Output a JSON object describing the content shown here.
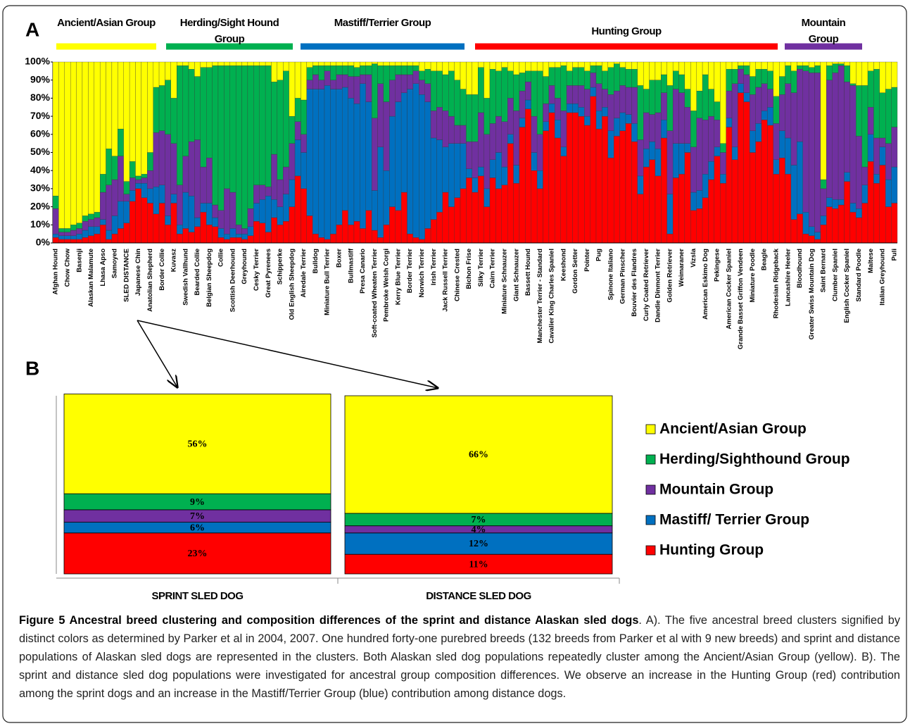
{
  "panel_labels": [
    "A",
    "B"
  ],
  "chart_data": [
    {
      "type": "stacked_bar",
      "groups": [
        {
          "label": "Ancient/Asian Group",
          "color": "#ffff00"
        },
        {
          "label": "Herding/Sight Hound Group",
          "color": "#00b050"
        },
        {
          "label": "Mastiff/Terrier Group",
          "color": "#0070c0"
        },
        {
          "label": "Hunting Group",
          "color": "#ff0000"
        },
        {
          "label": "Mountain Group",
          "color": "#7030a0"
        }
      ],
      "ylim": [
        0,
        100
      ],
      "yticks": [
        {
          "value": 0,
          "label": "0%"
        },
        {
          "value": 10,
          "label": "10%"
        },
        {
          "value": 20,
          "label": "20%"
        },
        {
          "value": 30,
          "label": "30%"
        },
        {
          "value": 40,
          "label": "40%"
        },
        {
          "value": 50,
          "label": "50%"
        },
        {
          "value": 60,
          "label": "60%"
        },
        {
          "value": 70,
          "label": "70%"
        },
        {
          "value": 80,
          "label": "80%"
        },
        {
          "value": 90,
          "label": "90%"
        },
        {
          "value": 100,
          "label": "100%"
        }
      ],
      "categories": [
        "Afghan Hound",
        null,
        "Chow Chow",
        null,
        "Basenji",
        null,
        "Alaskan Malamute",
        null,
        "Lhasa Apso",
        null,
        "Samoyed",
        null,
        "SLED DISTANCE",
        null,
        "Japanese Chin",
        null,
        "Anatolian Shepherd",
        null,
        "Border Collie",
        null,
        "Kuvasz",
        null,
        "Swedish Vallhund",
        null,
        "Bearded Collie",
        null,
        "Belgian Sheepdog",
        null,
        "Collie",
        null,
        "Scottish Deerhound",
        null,
        "Greyhound",
        null,
        "Cesky Terrier",
        null,
        "Great Pyrenees",
        null,
        "Schipperke",
        null,
        "Old English Sheepdog",
        null,
        "Airedale Terrier",
        null,
        "Bulldog",
        null,
        "Miniature Bull Terrier",
        null,
        "Boxer",
        null,
        "Bullmastiff",
        null,
        "Presa Canario",
        null,
        "Soft-coated Wheaten Terrier",
        null,
        "Pembroke Welsh Corgi",
        null,
        "Kerry Blue Terrier",
        null,
        "Border Terrier",
        null,
        "Norwich Terrier",
        null,
        "Irish Terrier",
        null,
        "Jack Russell Terrier",
        null,
        "Chinese Crested",
        null,
        "Bichon Frise",
        null,
        "Silky Terrier",
        null,
        "Cairn Terrier",
        null,
        "Miniature Schnauzer",
        null,
        "Giant Schnauzer",
        null,
        "Bassett Hound",
        null,
        "Manchester Terrier - Standard",
        null,
        "Cavalier King Charles Spaniel",
        null,
        "Keeshond",
        null,
        "Gordon Setter",
        null,
        "Pointer",
        null,
        "Pug",
        null,
        "Spinone Italiano",
        null,
        "German Pinscher",
        null,
        "Bouvier des Flandres",
        null,
        "Curly Coated Retriever",
        null,
        "Dandie Dinmont Terrier",
        null,
        "Golden Retriever",
        null,
        "Weimaraner",
        null,
        "Vizsla",
        null,
        "American Eskimo Dog",
        null,
        "Pekingese",
        null,
        "American Cocker Spaniel",
        null,
        "Grande Basset Griffon Vendeen",
        null,
        "Miniature Poodle",
        null,
        "Beagle",
        null,
        "Rhodesian Ridgeback",
        null,
        "Lancashire Heeler",
        null,
        "Bloodhound",
        null,
        "Greater Swiss Mountain Dog",
        null,
        "Saint Bernard",
        null,
        "Clumber Spaniel",
        null,
        "English Cocker Spaniel",
        null,
        "Standard Poodle",
        null,
        "Maltese",
        null,
        "Italian Greyhound",
        null,
        "Puli"
      ],
      "series": [
        {
          "color": "#ffff00",
          "values": [
            74,
            92,
            92,
            90,
            89,
            85,
            84,
            83,
            62,
            48,
            52,
            37,
            66,
            55,
            63,
            62,
            50,
            14,
            13,
            10,
            20,
            2,
            2,
            4,
            8,
            3,
            3,
            2,
            2,
            2,
            2,
            2,
            2,
            2,
            2,
            2,
            2,
            11,
            10,
            5,
            30,
            20,
            21,
            3,
            2,
            2,
            2,
            2,
            2,
            2,
            2,
            3,
            2,
            2,
            1,
            2,
            2,
            2,
            2,
            2,
            2,
            2,
            5,
            4,
            5,
            5,
            7,
            5,
            10,
            15,
            18,
            18,
            3,
            20,
            4,
            5,
            3,
            5,
            7,
            6,
            5,
            5,
            5,
            8,
            3,
            3,
            2,
            5,
            3,
            3,
            5,
            2,
            2,
            5,
            3,
            1,
            3,
            4,
            4,
            13,
            15,
            10,
            10,
            7,
            13,
            5,
            7,
            15,
            27,
            16,
            7,
            15,
            22,
            45,
            4,
            4,
            2,
            2,
            8,
            4,
            4,
            5,
            19,
            8,
            2,
            5,
            2,
            2,
            3,
            2,
            65,
            2,
            1,
            1,
            2,
            12,
            13,
            13,
            5,
            4,
            17,
            15,
            14
          ]
        },
        {
          "color": "#00b050",
          "values": [
            7,
            2,
            2,
            3,
            3,
            3,
            3,
            3,
            10,
            20,
            13,
            15,
            7,
            9,
            2,
            2,
            10,
            25,
            25,
            30,
            25,
            66,
            50,
            40,
            35,
            55,
            50,
            77,
            80,
            68,
            70,
            88,
            90,
            79,
            66,
            66,
            67,
            40,
            55,
            53,
            15,
            13,
            19,
            7,
            5,
            8,
            3,
            8,
            5,
            5,
            6,
            5,
            5,
            5,
            30,
            10,
            20,
            8,
            5,
            5,
            5,
            3,
            5,
            8,
            22,
            20,
            20,
            25,
            25,
            20,
            26,
            26,
            25,
            20,
            30,
            25,
            30,
            15,
            20,
            10,
            6,
            25,
            35,
            15,
            10,
            17,
            25,
            8,
            10,
            10,
            10,
            4,
            10,
            10,
            15,
            15,
            10,
            10,
            10,
            30,
            13,
            19,
            18,
            10,
            25,
            10,
            10,
            10,
            20,
            15,
            25,
            15,
            10,
            5,
            12,
            8,
            2,
            5,
            10,
            10,
            8,
            10,
            15,
            10,
            10,
            12,
            2,
            3,
            3,
            4,
            5,
            8,
            5,
            1,
            9,
            1,
            28,
            45,
            20,
            38,
            25,
            30,
            22
          ]
        },
        {
          "color": "#7030a0",
          "values": [
            14,
            2,
            2,
            3,
            3,
            5,
            4,
            5,
            15,
            25,
            20,
            25,
            4,
            7,
            2,
            3,
            10,
            30,
            30,
            45,
            28,
            22,
            20,
            30,
            43,
            20,
            25,
            7,
            10,
            25,
            20,
            5,
            3,
            10,
            10,
            8,
            5,
            25,
            15,
            15,
            20,
            10,
            10,
            5,
            8,
            5,
            8,
            5,
            8,
            7,
            12,
            15,
            5,
            15,
            40,
            35,
            38,
            20,
            15,
            10,
            8,
            7,
            8,
            10,
            15,
            18,
            20,
            15,
            10,
            10,
            15,
            20,
            30,
            30,
            20,
            20,
            25,
            20,
            30,
            15,
            10,
            20,
            20,
            10,
            10,
            12,
            20,
            10,
            10,
            12,
            15,
            8,
            15,
            10,
            20,
            15,
            15,
            15,
            20,
            20,
            20,
            15,
            20,
            15,
            35,
            30,
            28,
            20,
            25,
            40,
            30,
            25,
            15,
            12,
            15,
            35,
            8,
            10,
            20,
            20,
            15,
            10,
            20,
            20,
            30,
            40,
            40,
            78,
            85,
            88,
            15,
            65,
            70,
            74,
            50,
            65,
            40,
            10,
            15,
            20,
            5,
            20,
            22
          ]
        },
        {
          "color": "#0070c0",
          "values": [
            2,
            2,
            2,
            2,
            3,
            4,
            5,
            4,
            3,
            5,
            10,
            15,
            12,
            6,
            3,
            8,
            8,
            15,
            10,
            5,
            5,
            5,
            20,
            20,
            5,
            5,
            12,
            5,
            5,
            3,
            5,
            2,
            3,
            5,
            10,
            13,
            20,
            10,
            10,
            15,
            15,
            20,
            20,
            70,
            80,
            82,
            85,
            80,
            75,
            68,
            70,
            65,
            80,
            60,
            22,
            50,
            30,
            50,
            60,
            55,
            80,
            85,
            80,
            70,
            45,
            40,
            25,
            35,
            30,
            25,
            5,
            8,
            5,
            10,
            10,
            20,
            10,
            5,
            10,
            5,
            5,
            10,
            10,
            5,
            5,
            10,
            5,
            5,
            5,
            5,
            5,
            5,
            10,
            5,
            15,
            10,
            10,
            5,
            10,
            10,
            10,
            10,
            15,
            10,
            22,
            19,
            17,
            5,
            10,
            10,
            13,
            10,
            5,
            5,
            5,
            7,
            5,
            5,
            12,
            10,
            5,
            10,
            8,
            15,
            20,
            30,
            40,
            12,
            5,
            4,
            5,
            5,
            5,
            3,
            5,
            5,
            5,
            10,
            15,
            5,
            10,
            15,
            20
          ]
        },
        {
          "color": "#ff0000",
          "values": [
            3,
            2,
            2,
            2,
            2,
            3,
            4,
            5,
            10,
            2,
            5,
            8,
            11,
            23,
            30,
            25,
            22,
            16,
            22,
            10,
            22,
            5,
            8,
            6,
            9,
            17,
            10,
            9,
            3,
            2,
            3,
            3,
            2,
            4,
            12,
            11,
            6,
            14,
            10,
            12,
            20,
            37,
            30,
            15,
            5,
            3,
            2,
            5,
            10,
            18,
            10,
            12,
            8,
            18,
            7,
            3,
            10,
            20,
            18,
            28,
            5,
            3,
            2,
            8,
            13,
            17,
            28,
            20,
            25,
            30,
            36,
            28,
            37,
            20,
            36,
            30,
            32,
            55,
            33,
            64,
            74,
            40,
            30,
            62,
            72,
            58,
            48,
            72,
            72,
            70,
            65,
            81,
            63,
            70,
            47,
            59,
            62,
            66,
            56,
            27,
            42,
            46,
            37,
            58,
            5,
            36,
            38,
            50,
            18,
            19,
            25,
            35,
            48,
            33,
            64,
            46,
            83,
            78,
            50,
            56,
            68,
            65,
            38,
            47,
            38,
            13,
            16,
            5,
            4,
            2,
            10,
            20,
            19,
            21,
            34,
            17,
            14,
            22,
            45,
            33,
            43,
            20,
            22
          ]
        }
      ]
    },
    {
      "type": "stacked_bar",
      "categories": [
        "SPRINT SLED DOG",
        "DISTANCE SLED DOG"
      ],
      "ylim": [
        0,
        100
      ],
      "series": [
        {
          "name": "Ancient/Asian Group",
          "color": "#ffff00",
          "values": [
            56,
            66
          ],
          "value_labels": [
            "56%",
            "66%"
          ]
        },
        {
          "name": "Herding/Sighthound Group",
          "color": "#00b050",
          "values": [
            9,
            7
          ],
          "value_labels": [
            "9%",
            "7%"
          ]
        },
        {
          "name": "Mountain Group",
          "color": "#7030a0",
          "values": [
            7,
            4
          ],
          "value_labels": [
            "7%",
            "4%"
          ]
        },
        {
          "name": "Mastiff/ Terrier Group",
          "color": "#0070c0",
          "values": [
            6,
            12
          ],
          "value_labels": [
            "6%",
            "12%"
          ]
        },
        {
          "name": "Hunting Group",
          "color": "#ff0000",
          "values": [
            23,
            11
          ],
          "value_labels": [
            "23%",
            "11%"
          ]
        }
      ]
    }
  ],
  "caption": {
    "title": "Figure 5 Ancestral breed clustering and composition differences of the sprint and distance Alaskan sled dogs",
    "text": ". A). The five ancestral breed clusters signified by distinct colors as determined by Parker et al in 2004, 2007. One hundred forty-one purebred breeds (132 breeds from Parker et al with 9 new breeds) and sprint and distance populations of Alaskan sled dogs are represented in the clusters. Both Alaskan sled dog populations repeatedly cluster among the Ancient/Asian Group (yellow). B). The sprint and distance sled dog populations were investigated for ancestral group composition differences. We observe an increase in the Hunting Group (red) contribution among the sprint dogs and an increase in the Mastiff/Terrier Group (blue) contribution among distance dogs."
  }
}
